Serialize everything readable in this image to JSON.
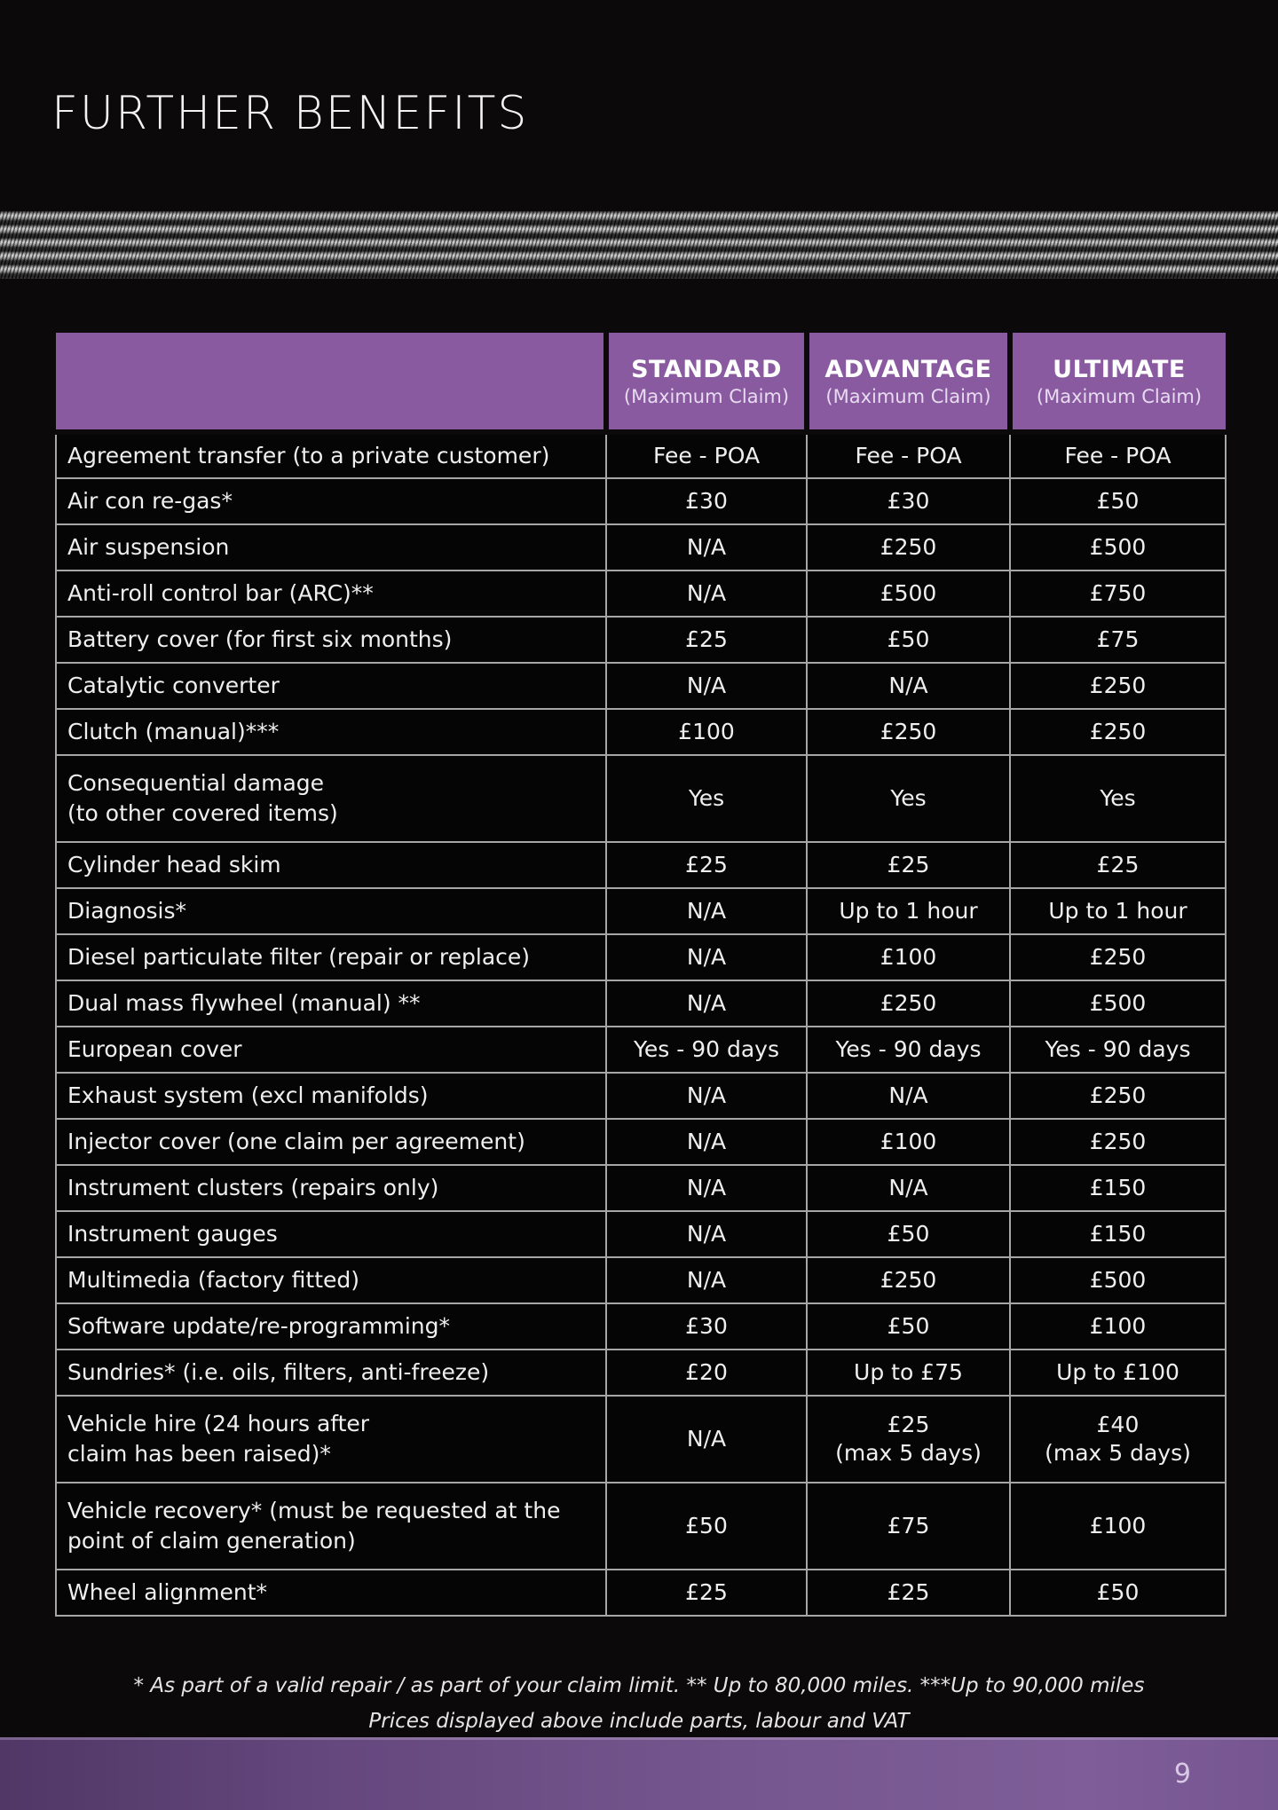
{
  "page": {
    "title": "FURTHER BENEFITS",
    "page_number": "9",
    "footnote_line1": "* As part of a valid repair / as part of your claim limit.  ** Up to 80,000 miles.  ***Up to 90,000 miles",
    "footnote_line2": "Prices displayed above include parts, labour and VAT"
  },
  "colors": {
    "background": "#0b090a",
    "header_purple": "#8a5aa0",
    "table_border_gray": "#a6a6a6",
    "footer_purple_dark": "#503766",
    "footer_purple_light": "#7e5d98",
    "text_white": "#f0efef"
  },
  "table": {
    "columns": [
      {
        "label": "STANDARD",
        "sub": "(Maximum Claim)"
      },
      {
        "label": "ADVANTAGE",
        "sub": "(Maximum Claim)"
      },
      {
        "label": "ULTIMATE",
        "sub": "(Maximum Claim)"
      }
    ],
    "rows": [
      {
        "benefit": "Agreement transfer (to a private customer)",
        "standard": "Fee - POA",
        "advantage": "Fee - POA",
        "ultimate": "Fee - POA"
      },
      {
        "benefit": "Air con re-gas*",
        "standard": "£30",
        "advantage": "£30",
        "ultimate": "£50"
      },
      {
        "benefit": "Air suspension",
        "standard": "N/A",
        "advantage": "£250",
        "ultimate": "£500"
      },
      {
        "benefit": "Anti-roll control bar (ARC)**",
        "standard": "N/A",
        "advantage": "£500",
        "ultimate": "£750"
      },
      {
        "benefit": "Battery cover (for first six months)",
        "standard": "£25",
        "advantage": "£50",
        "ultimate": "£75"
      },
      {
        "benefit": "Catalytic converter",
        "standard": "N/A",
        "advantage": "N/A",
        "ultimate": "£250"
      },
      {
        "benefit": "Clutch (manual)***",
        "standard": "£100",
        "advantage": "£250",
        "ultimate": "£250"
      },
      {
        "benefit": "Consequential damage\n(to other covered items)",
        "standard": "Yes",
        "advantage": "Yes",
        "ultimate": "Yes"
      },
      {
        "benefit": "Cylinder head skim",
        "standard": "£25",
        "advantage": "£25",
        "ultimate": "£25"
      },
      {
        "benefit": "Diagnosis*",
        "standard": "N/A",
        "advantage": "Up to 1 hour",
        "ultimate": "Up to 1 hour"
      },
      {
        "benefit": "Diesel particulate filter (repair or replace)",
        "standard": "N/A",
        "advantage": "£100",
        "ultimate": "£250"
      },
      {
        "benefit": "Dual mass flywheel (manual) **",
        "standard": "N/A",
        "advantage": "£250",
        "ultimate": "£500"
      },
      {
        "benefit": "European cover",
        "standard": "Yes - 90 days",
        "advantage": "Yes - 90 days",
        "ultimate": "Yes - 90 days"
      },
      {
        "benefit": "Exhaust system (excl manifolds)",
        "standard": "N/A",
        "advantage": "N/A",
        "ultimate": "£250"
      },
      {
        "benefit": "Injector cover (one claim per agreement)",
        "standard": "N/A",
        "advantage": "£100",
        "ultimate": "£250"
      },
      {
        "benefit": "Instrument clusters (repairs only)",
        "standard": "N/A",
        "advantage": "N/A",
        "ultimate": "£150"
      },
      {
        "benefit": "Instrument gauges",
        "standard": "N/A",
        "advantage": "£50",
        "ultimate": "£150"
      },
      {
        "benefit": "Multimedia (factory fitted)",
        "standard": "N/A",
        "advantage": "£250",
        "ultimate": "£500"
      },
      {
        "benefit": "Software update/re-programming*",
        "standard": "£30",
        "advantage": "£50",
        "ultimate": "£100"
      },
      {
        "benefit": "Sundries* (i.e. oils, filters, anti-freeze)",
        "standard": "£20",
        "advantage": "Up to £75",
        "ultimate": "Up to £100"
      },
      {
        "benefit": "Vehicle hire (24 hours after\nclaim has been raised)*",
        "standard": "N/A",
        "advantage": "£25\n(max 5 days)",
        "ultimate": "£40\n(max 5 days)"
      },
      {
        "benefit": "Vehicle recovery* (must be requested at the\npoint of claim generation)",
        "standard": "£50",
        "advantage": "£75",
        "ultimate": "£100"
      },
      {
        "benefit": "Wheel alignment*",
        "standard": "£25",
        "advantage": "£25",
        "ultimate": "£50"
      }
    ]
  }
}
